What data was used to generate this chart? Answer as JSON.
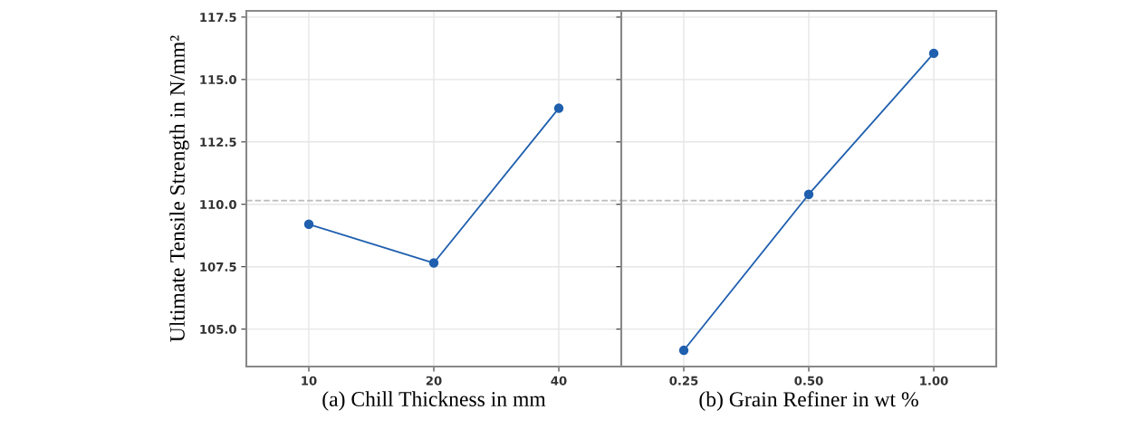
{
  "chart_data": [
    {
      "type": "line",
      "categories": [
        "10",
        "20",
        "40"
      ],
      "xlabel": "(a) Chill Thickness in mm",
      "ylabel": "Ultimate Tensile Strength in N/mm²",
      "series": [
        {
          "color": "#1f5fae",
          "values": [
            109.2,
            107.65,
            113.85
          ]
        }
      ],
      "ylim": [
        103.5,
        117.75
      ],
      "yticks": [
        {
          "value": 105,
          "label": "105.0"
        },
        {
          "value": 107.5,
          "label": "107.5"
        },
        {
          "value": 110,
          "label": "110.0"
        },
        {
          "value": 112.5,
          "label": "112.5"
        },
        {
          "value": 115,
          "label": "115.0"
        },
        {
          "value": 117.5,
          "label": "117.5"
        }
      ],
      "ref_lines": [
        {
          "axis": "y",
          "value": 110.15,
          "color": "#bbbbbb",
          "line_style": "dashed"
        }
      ],
      "grid": true,
      "marker": "circle",
      "line_style": "solid"
    },
    {
      "type": "line",
      "categories": [
        "0.25",
        "0.50",
        "1.00"
      ],
      "xlabel": "(b) Grain Refiner in wt %",
      "series": [
        {
          "color": "#1f5fae",
          "values": [
            104.15,
            110.4,
            116.05
          ]
        }
      ],
      "ylim": [
        103.5,
        117.75
      ],
      "tick_labels": "x",
      "ref_lines": [
        {
          "axis": "y",
          "value": 110.15,
          "color": "#bbbbbb",
          "line_style": "dashed"
        }
      ],
      "grid": true,
      "marker": "circle",
      "line_style": "solid"
    }
  ]
}
